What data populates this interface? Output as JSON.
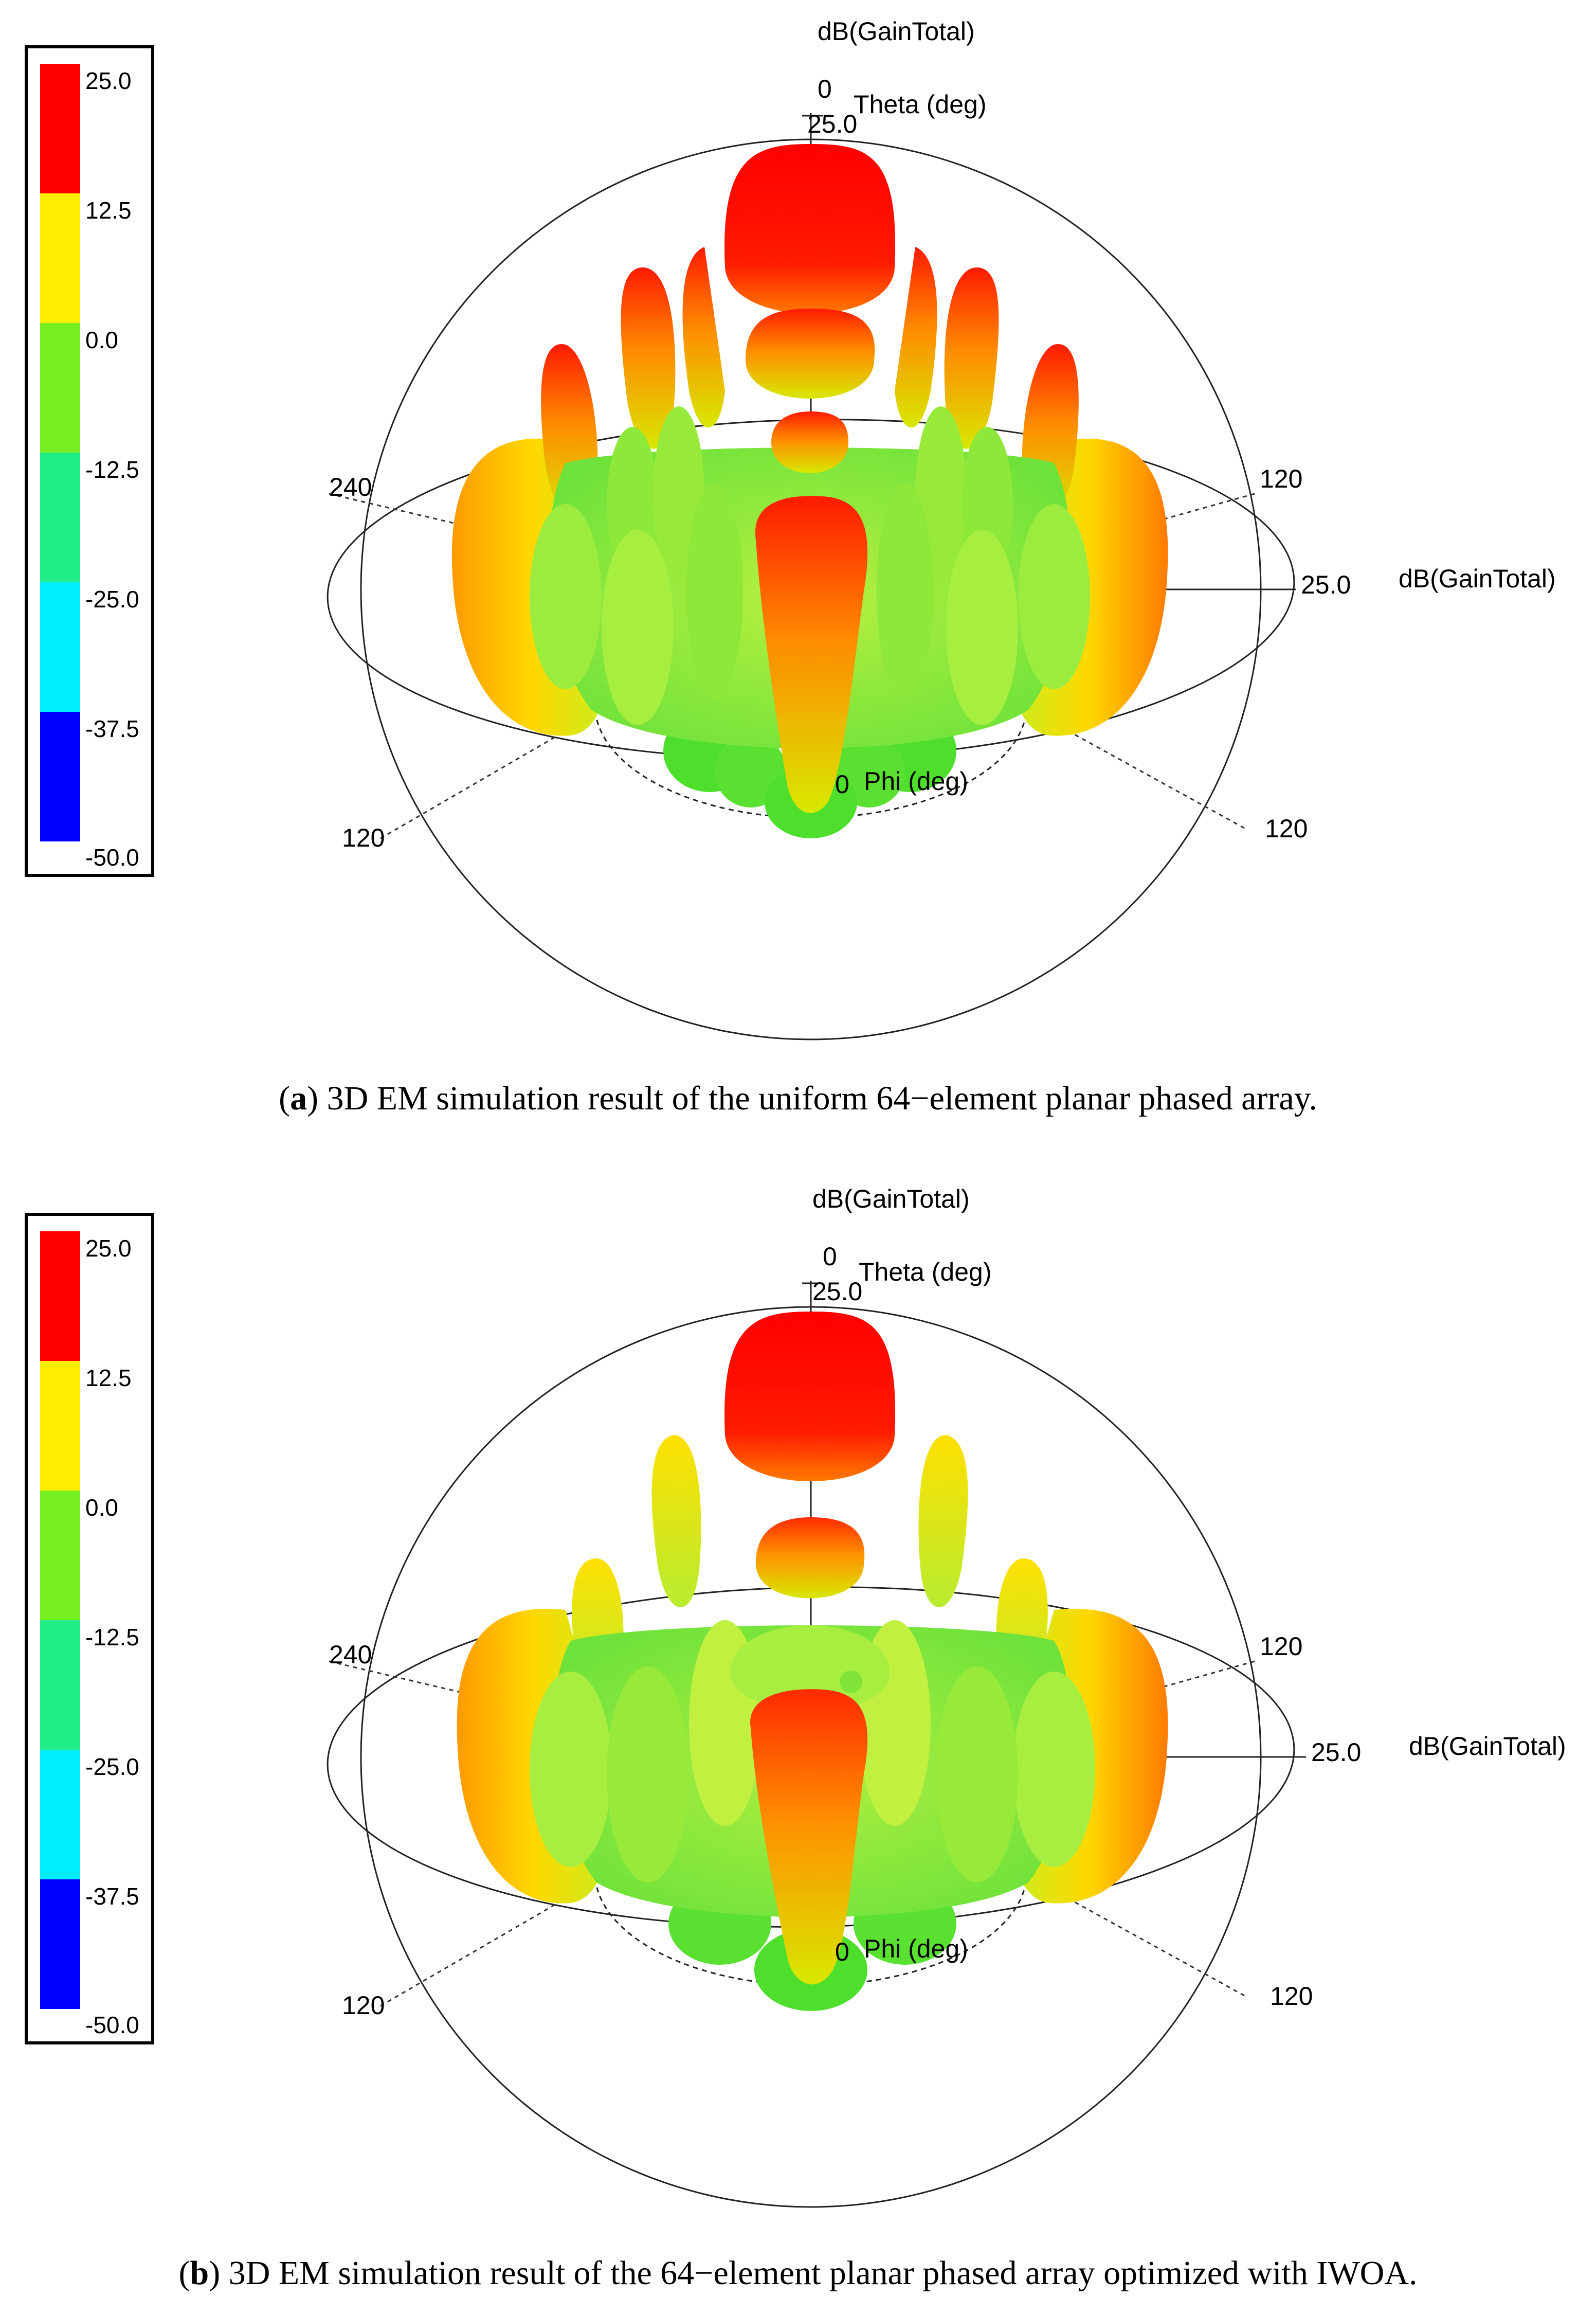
{
  "legend": {
    "ticks": [
      "25.0",
      "12.5",
      "0.0",
      "-12.5",
      "-25.0",
      "-37.5",
      "-50.0"
    ],
    "colors": [
      "#ff0000",
      "#ffee00",
      "#77ee22",
      "#22ee88",
      "#00eeff",
      "#0000ff"
    ]
  },
  "panels": [
    {
      "id": "a",
      "top_title": "dB(GainTotal)",
      "theta_zero": "0",
      "theta_label": "Theta (deg)",
      "theta_max": "25.0",
      "right_value": "25.0",
      "right_title": "dB(GainTotal)",
      "label_240": "240",
      "label_120_upper_right": "120",
      "label_120_lower_left": "120",
      "label_120_lower_right": "120",
      "phi_zero": "0",
      "phi_label": "Phi (deg)",
      "caption_letter": "a",
      "caption_text": " 3D EM simulation result of the uniform 64−element planar phased array."
    },
    {
      "id": "b",
      "top_title": "dB(GainTotal)",
      "theta_zero": "0",
      "theta_label": "Theta (deg)",
      "theta_max": "25.0",
      "right_value": "25.0",
      "right_title": "dB(GainTotal)",
      "label_240": "240",
      "label_120_upper_right": "120",
      "label_120_lower_left": "120",
      "label_120_lower_right": "120",
      "phi_zero": "0",
      "phi_label": "Phi (deg)",
      "caption_letter": "b",
      "caption_text": " 3D EM simulation result of the 64−element planar phased array optimized with IWOA."
    }
  ]
}
